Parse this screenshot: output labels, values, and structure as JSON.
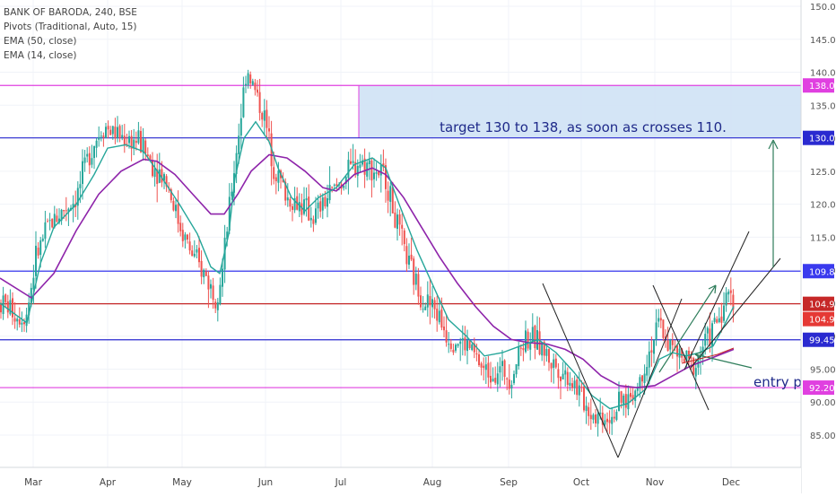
{
  "legend": {
    "title": "BANK OF BARODA, 240, BSE",
    "pivots": "Pivots (Traditional, Auto, 15)",
    "ema50": "EMA (50, close)",
    "ema14": "EMA (14, close)"
  },
  "chart_data": {
    "type": "candlestick",
    "y_axis": {
      "min": 80,
      "max": 150,
      "ticks": [
        85,
        90,
        95,
        100,
        105,
        110,
        115,
        120,
        125,
        130,
        135,
        140,
        145,
        150
      ],
      "tick_labels": [
        "85.00",
        "90.00",
        "95.00",
        "100.00",
        "105.00",
        "110.00",
        "115.00",
        "120.00",
        "125.00",
        "130.00",
        "135.00",
        "140.00",
        "145.00",
        "150.00"
      ]
    },
    "x_axis": {
      "labels": [
        "Mar",
        "Apr",
        "May",
        "Jun",
        "Jul",
        "Aug",
        "Sep",
        "Oct",
        "Nov",
        "Dec"
      ]
    },
    "horizontal_levels": [
      {
        "value": 138.0,
        "label": "138.00",
        "color": "#e040e0"
      },
      {
        "value": 130.05,
        "label": "130.05",
        "color": "#2a2ad0"
      },
      {
        "value": 109.85,
        "label": "109.85",
        "color": "#3a3aee"
      },
      {
        "value": 104.9,
        "label": "104.90",
        "color": "#c62828"
      },
      {
        "value": 99.45,
        "label": "99.45",
        "color": "#2a2ad0"
      },
      {
        "value": 92.2,
        "label": "92.20",
        "color": "#e040e0"
      }
    ],
    "price_labels": [
      {
        "value": 104.9,
        "label": "104.90",
        "color": "#e53935"
      }
    ],
    "target_zone": {
      "from": 130.05,
      "to": 138.0,
      "color": "#cfe2f5"
    },
    "annotations": [
      {
        "text": "target 130 to 138, as soon as crosses 110.",
        "color": "#1f2a8a"
      },
      {
        "text": "entry po",
        "color": "#1f2a8a"
      }
    ],
    "ema50": [
      [
        0,
        108.8
      ],
      [
        35,
        105.8
      ],
      [
        60,
        109.5
      ],
      [
        85,
        116
      ],
      [
        110,
        121.5
      ],
      [
        135,
        125
      ],
      [
        160,
        126.8
      ],
      [
        175,
        126.5
      ],
      [
        195,
        124.5
      ],
      [
        215,
        121.5
      ],
      [
        235,
        118.5
      ],
      [
        250,
        118.5
      ],
      [
        265,
        121.5
      ],
      [
        280,
        125
      ],
      [
        300,
        127.5
      ],
      [
        320,
        127
      ],
      [
        340,
        125
      ],
      [
        360,
        122.5
      ],
      [
        375,
        122
      ],
      [
        395,
        124.5
      ],
      [
        415,
        125.5
      ],
      [
        430,
        124.5
      ],
      [
        450,
        121
      ],
      [
        470,
        116.5
      ],
      [
        490,
        112
      ],
      [
        510,
        108
      ],
      [
        530,
        104.5
      ],
      [
        550,
        101.5
      ],
      [
        570,
        99.5
      ],
      [
        590,
        99
      ],
      [
        610,
        98.8
      ],
      [
        630,
        98
      ],
      [
        650,
        96.5
      ],
      [
        670,
        94
      ],
      [
        690,
        92.5
      ],
      [
        710,
        92.2
      ],
      [
        730,
        92.5
      ],
      [
        750,
        94
      ],
      [
        770,
        95.5
      ],
      [
        790,
        96.5
      ],
      [
        818,
        98
      ]
    ],
    "ema14": [
      [
        0,
        105
      ],
      [
        30,
        102
      ],
      [
        45,
        111
      ],
      [
        60,
        116.5
      ],
      [
        85,
        120
      ],
      [
        105,
        124.5
      ],
      [
        120,
        128.5
      ],
      [
        140,
        129
      ],
      [
        160,
        128
      ],
      [
        178,
        124.5
      ],
      [
        200,
        120
      ],
      [
        220,
        115.5
      ],
      [
        235,
        110.5
      ],
      [
        245,
        109.5
      ],
      [
        255,
        115.5
      ],
      [
        262,
        124
      ],
      [
        272,
        130
      ],
      [
        285,
        132.5
      ],
      [
        300,
        129.5
      ],
      [
        310,
        125.5
      ],
      [
        325,
        121
      ],
      [
        340,
        119
      ],
      [
        355,
        121
      ],
      [
        375,
        122.5
      ],
      [
        395,
        126
      ],
      [
        415,
        127
      ],
      [
        430,
        125.5
      ],
      [
        445,
        120
      ],
      [
        465,
        113
      ],
      [
        485,
        107
      ],
      [
        500,
        102.5
      ],
      [
        520,
        100
      ],
      [
        540,
        97
      ],
      [
        560,
        97.5
      ],
      [
        580,
        98.5
      ],
      [
        600,
        99.5
      ],
      [
        620,
        97.5
      ],
      [
        640,
        94.5
      ],
      [
        660,
        91
      ],
      [
        680,
        89
      ],
      [
        700,
        89.8
      ],
      [
        720,
        92
      ],
      [
        735,
        96.5
      ],
      [
        750,
        97.5
      ],
      [
        765,
        97
      ],
      [
        780,
        97.5
      ],
      [
        795,
        98.5
      ],
      [
        805,
        101
      ],
      [
        818,
        104.5
      ]
    ],
    "price_path": [
      [
        0,
        105
      ],
      [
        10,
        104.5
      ],
      [
        20,
        103
      ],
      [
        30,
        103.5
      ],
      [
        40,
        112
      ],
      [
        55,
        117
      ],
      [
        70,
        119
      ],
      [
        85,
        121
      ],
      [
        100,
        128
      ],
      [
        115,
        132
      ],
      [
        125,
        131
      ],
      [
        140,
        130
      ],
      [
        155,
        129.5
      ],
      [
        170,
        126
      ],
      [
        185,
        124
      ],
      [
        200,
        117
      ],
      [
        215,
        112
      ],
      [
        230,
        109
      ],
      [
        240,
        106
      ],
      [
        248,
        110
      ],
      [
        258,
        122
      ],
      [
        268,
        133
      ],
      [
        275,
        141
      ],
      [
        282,
        138
      ],
      [
        295,
        133
      ],
      [
        305,
        126
      ],
      [
        320,
        121
      ],
      [
        335,
        120
      ],
      [
        350,
        118
      ],
      [
        365,
        121
      ],
      [
        378,
        123
      ],
      [
        390,
        125
      ],
      [
        400,
        126.5
      ],
      [
        415,
        125.5
      ],
      [
        430,
        124
      ],
      [
        442,
        117
      ],
      [
        455,
        111
      ],
      [
        470,
        106
      ],
      [
        485,
        104
      ],
      [
        500,
        100
      ],
      [
        515,
        99
      ],
      [
        525,
        98
      ],
      [
        540,
        94.5
      ],
      [
        555,
        95
      ],
      [
        570,
        94
      ],
      [
        585,
        100
      ],
      [
        600,
        99
      ],
      [
        615,
        96
      ],
      [
        625,
        95
      ],
      [
        640,
        93
      ],
      [
        655,
        89
      ],
      [
        665,
        88
      ],
      [
        680,
        88
      ],
      [
        695,
        90
      ],
      [
        710,
        92
      ],
      [
        722,
        97
      ],
      [
        735,
        102
      ],
      [
        745,
        99
      ],
      [
        755,
        97
      ],
      [
        765,
        96
      ],
      [
        775,
        95.5
      ],
      [
        785,
        99
      ],
      [
        795,
        101
      ],
      [
        805,
        104
      ],
      [
        815,
        107
      ],
      [
        818,
        106
      ]
    ]
  }
}
